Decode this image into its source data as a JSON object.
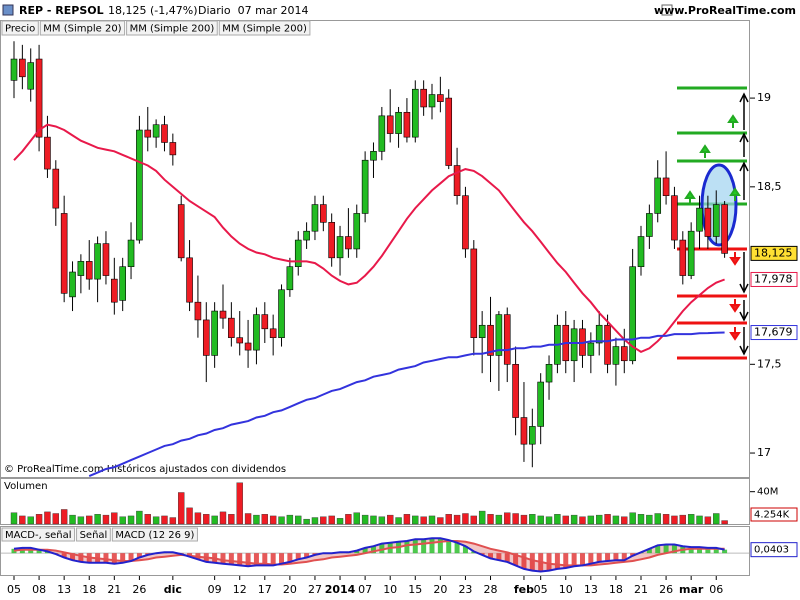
{
  "header": {
    "symbol": "REP - REPSOL",
    "quote": "18,125 (-1,47%)",
    "period": "Diario  07 mar 2014",
    "site": "www.ProRealTime.com",
    "legend": [
      "Precio",
      "MM (Simple 20)",
      "MM (Simple 200)",
      "MM (Simple 200)"
    ],
    "footer": "© ProRealTime.com  Históricos ajustados con dividendos"
  },
  "chart_data": [
    {
      "type": "candlestick",
      "up_color": "#22bb22",
      "down_color": "#ee1c24",
      "categories": [
        "05",
        null,
        null,
        "08",
        null,
        null,
        "13",
        null,
        null,
        "18",
        null,
        null,
        "21",
        null,
        null,
        "26",
        null,
        null,
        null,
        "dic",
        null,
        null,
        null,
        null,
        "09",
        null,
        null,
        "12",
        null,
        null,
        "17",
        null,
        null,
        "20",
        null,
        null,
        "27",
        null,
        null,
        "2014",
        null,
        null,
        "07",
        null,
        null,
        "10",
        null,
        null,
        "15",
        null,
        null,
        "20",
        null,
        null,
        "23",
        null,
        null,
        "28",
        null,
        null,
        null,
        "feb",
        null,
        "05",
        null,
        null,
        "10",
        null,
        null,
        "13",
        null,
        null,
        "18",
        null,
        null,
        "21",
        null,
        null,
        "26",
        null,
        null,
        "mar",
        null,
        null,
        "06",
        null
      ],
      "open": [
        19.1,
        19.22,
        19.05,
        19.22,
        18.78,
        18.6,
        18.35,
        17.88,
        18.0,
        18.08,
        17.98,
        18.18,
        17.98,
        17.86,
        18.05,
        18.2,
        18.82,
        18.78,
        18.85,
        18.75,
        18.4,
        18.1,
        17.85,
        17.75,
        17.55,
        17.8,
        17.76,
        17.65,
        17.62,
        17.58,
        17.78,
        17.7,
        17.65,
        17.92,
        18.05,
        18.2,
        18.25,
        18.4,
        18.3,
        18.1,
        18.22,
        18.15,
        18.35,
        18.65,
        18.7,
        18.9,
        18.8,
        18.92,
        18.78,
        19.05,
        18.95,
        19.02,
        19.0,
        18.62,
        18.45,
        18.15,
        17.65,
        17.72,
        17.55,
        17.78,
        17.5,
        17.2,
        17.05,
        17.15,
        17.4,
        17.5,
        17.72,
        17.52,
        17.7,
        17.55,
        17.62,
        17.72,
        17.5,
        17.6,
        17.52,
        18.05,
        18.22,
        18.35,
        18.55,
        18.45,
        18.2,
        18.0,
        18.25,
        18.38,
        18.22,
        18.4
      ],
      "high": [
        19.32,
        19.3,
        19.28,
        19.3,
        18.9,
        18.65,
        18.45,
        18.08,
        18.12,
        18.2,
        18.22,
        18.25,
        18.1,
        18.1,
        18.3,
        18.9,
        18.95,
        18.88,
        18.9,
        18.8,
        18.45,
        18.2,
        18.0,
        17.85,
        17.85,
        17.95,
        17.85,
        17.8,
        17.75,
        17.82,
        17.85,
        17.78,
        17.95,
        18.1,
        18.25,
        18.3,
        18.45,
        18.45,
        18.35,
        18.28,
        18.38,
        18.4,
        18.7,
        18.75,
        18.95,
        19.05,
        18.95,
        19.0,
        19.1,
        19.1,
        19.08,
        19.12,
        19.05,
        18.72,
        18.5,
        18.2,
        17.8,
        17.88,
        17.8,
        17.82,
        17.6,
        17.4,
        17.25,
        17.45,
        17.55,
        17.78,
        17.8,
        17.75,
        17.75,
        17.68,
        17.8,
        17.78,
        17.65,
        17.7,
        18.15,
        18.28,
        18.4,
        18.65,
        18.7,
        18.5,
        18.25,
        18.3,
        18.45,
        18.45,
        18.48,
        18.42
      ],
      "low": [
        19.0,
        19.05,
        18.98,
        18.7,
        18.55,
        18.28,
        17.85,
        17.8,
        17.9,
        17.92,
        17.85,
        17.95,
        17.78,
        17.8,
        17.98,
        18.18,
        18.7,
        18.72,
        18.7,
        18.62,
        18.08,
        17.8,
        17.65,
        17.4,
        17.48,
        17.7,
        17.6,
        17.55,
        17.48,
        17.5,
        17.62,
        17.55,
        17.6,
        17.88,
        18.0,
        18.15,
        18.2,
        18.25,
        18.05,
        18.0,
        18.1,
        18.1,
        18.3,
        18.55,
        18.65,
        18.75,
        18.72,
        18.75,
        18.75,
        18.9,
        18.88,
        18.92,
        18.6,
        18.4,
        18.1,
        17.55,
        17.45,
        17.4,
        17.35,
        17.4,
        17.1,
        16.95,
        16.92,
        17.05,
        17.3,
        17.45,
        17.45,
        17.4,
        17.48,
        17.45,
        17.55,
        17.45,
        17.38,
        17.45,
        17.5,
        18.0,
        18.15,
        18.3,
        18.4,
        18.15,
        17.95,
        17.98,
        18.15,
        18.15,
        18.18,
        18.1
      ],
      "close": [
        19.22,
        19.12,
        19.2,
        18.78,
        18.6,
        18.38,
        17.9,
        18.02,
        18.08,
        17.98,
        18.18,
        18.0,
        17.85,
        18.05,
        18.2,
        18.82,
        18.78,
        18.85,
        18.75,
        18.68,
        18.1,
        17.85,
        17.75,
        17.55,
        17.8,
        17.76,
        17.65,
        17.62,
        17.58,
        17.78,
        17.7,
        17.65,
        17.92,
        18.05,
        18.2,
        18.25,
        18.4,
        18.3,
        18.1,
        18.22,
        18.15,
        18.35,
        18.65,
        18.7,
        18.9,
        18.8,
        18.92,
        18.78,
        19.05,
        18.95,
        19.02,
        18.98,
        18.62,
        18.45,
        18.15,
        17.65,
        17.72,
        17.55,
        17.78,
        17.5,
        17.2,
        17.05,
        17.15,
        17.4,
        17.5,
        17.72,
        17.52,
        17.7,
        17.55,
        17.62,
        17.72,
        17.5,
        17.6,
        17.52,
        18.05,
        18.22,
        18.35,
        18.55,
        18.45,
        18.2,
        18.0,
        18.25,
        18.38,
        18.22,
        18.4,
        18.125
      ],
      "close_label": "18,125",
      "series": [
        {
          "name": "MM (Simple 20)",
          "color": "#e8194a",
          "last_label": "17,978",
          "values": [
            18.65,
            18.7,
            18.76,
            18.82,
            18.85,
            18.84,
            18.82,
            18.79,
            18.76,
            18.74,
            18.72,
            18.71,
            18.7,
            18.68,
            18.66,
            18.64,
            18.62,
            18.59,
            18.54,
            18.5,
            18.46,
            18.42,
            18.39,
            18.36,
            18.33,
            18.27,
            18.22,
            18.18,
            18.15,
            18.13,
            18.12,
            18.1,
            18.09,
            18.08,
            18.08,
            18.08,
            18.07,
            18.04,
            18.0,
            17.97,
            17.95,
            17.96,
            18.0,
            18.05,
            18.11,
            18.18,
            18.25,
            18.32,
            18.38,
            18.43,
            18.48,
            18.52,
            18.56,
            18.58,
            18.6,
            18.59,
            18.56,
            18.52,
            18.48,
            18.42,
            18.36,
            18.3,
            18.25,
            18.19,
            18.13,
            18.07,
            18.02,
            17.96,
            17.9,
            17.85,
            17.79,
            17.74,
            17.69,
            17.64,
            17.6,
            17.57,
            17.59,
            17.63,
            17.68,
            17.74,
            17.8,
            17.85,
            17.89,
            17.93,
            17.96,
            17.978
          ]
        },
        {
          "name": "MM (Simple 200)",
          "color": "#3333dd",
          "last_label": "17,679",
          "values": [
            null,
            null,
            null,
            null,
            null,
            null,
            null,
            null,
            null,
            16.87,
            16.89,
            16.91,
            16.92,
            16.94,
            16.96,
            16.98,
            17.0,
            17.02,
            17.04,
            17.05,
            17.07,
            17.08,
            17.1,
            17.11,
            17.13,
            17.14,
            17.16,
            17.17,
            17.18,
            17.2,
            17.21,
            17.23,
            17.24,
            17.26,
            17.28,
            17.3,
            17.31,
            17.33,
            17.35,
            17.36,
            17.38,
            17.4,
            17.41,
            17.43,
            17.44,
            17.45,
            17.47,
            17.48,
            17.49,
            17.51,
            17.52,
            17.53,
            17.54,
            17.54,
            17.55,
            17.56,
            17.56,
            17.57,
            17.58,
            17.58,
            17.59,
            17.59,
            17.6,
            17.6,
            17.61,
            17.61,
            17.62,
            17.62,
            17.62,
            17.63,
            17.63,
            17.63,
            17.64,
            17.64,
            17.64,
            17.65,
            17.65,
            17.66,
            17.66,
            17.67,
            17.67,
            17.67,
            17.675,
            17.676,
            17.678,
            17.679
          ]
        }
      ],
      "ylim": [
        16.865,
        19.44
      ],
      "yticks": [
        17,
        {
          "value": 17.5,
          "label": "17,5"
        },
        {
          "value": 18.5,
          "label": "18,5"
        },
        19
      ]
    },
    {
      "type": "bar",
      "name": "Volumen",
      "last_label": "4.254K",
      "values": [
        14000000,
        10000000,
        9000000,
        12000000,
        15000000,
        13000000,
        18000000,
        11000000,
        9000000,
        10000000,
        12000000,
        11000000,
        14000000,
        9000000,
        10000000,
        16000000,
        12000000,
        9000000,
        10000000,
        8000000,
        39000000,
        20000000,
        14000000,
        12000000,
        10000000,
        15000000,
        12000000,
        51000000,
        13000000,
        11000000,
        12000000,
        10000000,
        9000000,
        11000000,
        10000000,
        6000000,
        8000000,
        9000000,
        10000000,
        7000000,
        12000000,
        14000000,
        11000000,
        10000000,
        9000000,
        11000000,
        8000000,
        12000000,
        10000000,
        9000000,
        10000000,
        8000000,
        12000000,
        11000000,
        13000000,
        10000000,
        16000000,
        12000000,
        11000000,
        14000000,
        13000000,
        11000000,
        12000000,
        10000000,
        9000000,
        12000000,
        10000000,
        11000000,
        9000000,
        10000000,
        11000000,
        12000000,
        10000000,
        9000000,
        14000000,
        12000000,
        11000000,
        13000000,
        12000000,
        10000000,
        11000000,
        12000000,
        10000000,
        9000000,
        13000000,
        4254000
      ],
      "ylim": [
        0,
        55700000
      ],
      "yticks": [
        {
          "value": 40000000,
          "label": "40M"
        }
      ]
    },
    {
      "type": "macd",
      "histogram_name": "MACD-, señal",
      "series": [
        {
          "name": "Señal",
          "color": "#e05050",
          "values": [
            0.03,
            0.04,
            0.04,
            0.04,
            0.04,
            0.03,
            0.01,
            -0.01,
            -0.03,
            -0.05,
            -0.06,
            -0.07,
            -0.08,
            -0.09,
            -0.09,
            -0.08,
            -0.07,
            -0.05,
            -0.04,
            -0.03,
            -0.02,
            -0.03,
            -0.04,
            -0.05,
            -0.06,
            -0.08,
            -0.09,
            -0.1,
            -0.11,
            -0.12,
            -0.12,
            -0.13,
            -0.13,
            -0.12,
            -0.11,
            -0.1,
            -0.08,
            -0.07,
            -0.05,
            -0.04,
            -0.03,
            -0.02,
            0.0,
            0.02,
            0.04,
            0.06,
            0.07,
            0.09,
            0.1,
            0.11,
            0.12,
            0.13,
            0.14,
            0.14,
            0.13,
            0.11,
            0.08,
            0.05,
            0.03,
            0.01,
            -0.02,
            -0.05,
            -0.08,
            -0.1,
            -0.12,
            -0.13,
            -0.14,
            -0.14,
            -0.14,
            -0.14,
            -0.13,
            -0.12,
            -0.11,
            -0.1,
            -0.09,
            -0.07,
            -0.05,
            -0.02,
            0.0,
            0.02,
            0.04,
            0.05,
            0.05,
            0.05,
            0.05,
            0.05
          ]
        },
        {
          "name": "MACD (12 26 9)",
          "color": "#2222cc",
          "last_label": "0,0403",
          "values": [
            0.05,
            0.06,
            0.06,
            0.04,
            0.02,
            -0.01,
            -0.05,
            -0.08,
            -0.1,
            -0.11,
            -0.11,
            -0.11,
            -0.12,
            -0.11,
            -0.09,
            -0.05,
            -0.02,
            0.0,
            0.01,
            0.01,
            -0.01,
            -0.04,
            -0.07,
            -0.1,
            -0.11,
            -0.12,
            -0.13,
            -0.14,
            -0.15,
            -0.14,
            -0.14,
            -0.14,
            -0.12,
            -0.1,
            -0.07,
            -0.05,
            -0.02,
            0.0,
            0.0,
            0.01,
            0.01,
            0.03,
            0.06,
            0.08,
            0.11,
            0.12,
            0.13,
            0.14,
            0.16,
            0.16,
            0.17,
            0.17,
            0.15,
            0.12,
            0.08,
            0.02,
            -0.02,
            -0.06,
            -0.08,
            -0.1,
            -0.14,
            -0.18,
            -0.2,
            -0.21,
            -0.2,
            -0.18,
            -0.17,
            -0.15,
            -0.14,
            -0.12,
            -0.1,
            -0.09,
            -0.08,
            -0.08,
            -0.03,
            0.01,
            0.05,
            0.09,
            0.1,
            0.1,
            0.08,
            0.07,
            0.07,
            0.06,
            0.06,
            0.0403
          ]
        }
      ],
      "ylim": [
        -0.25,
        0.3
      ]
    }
  ]
}
